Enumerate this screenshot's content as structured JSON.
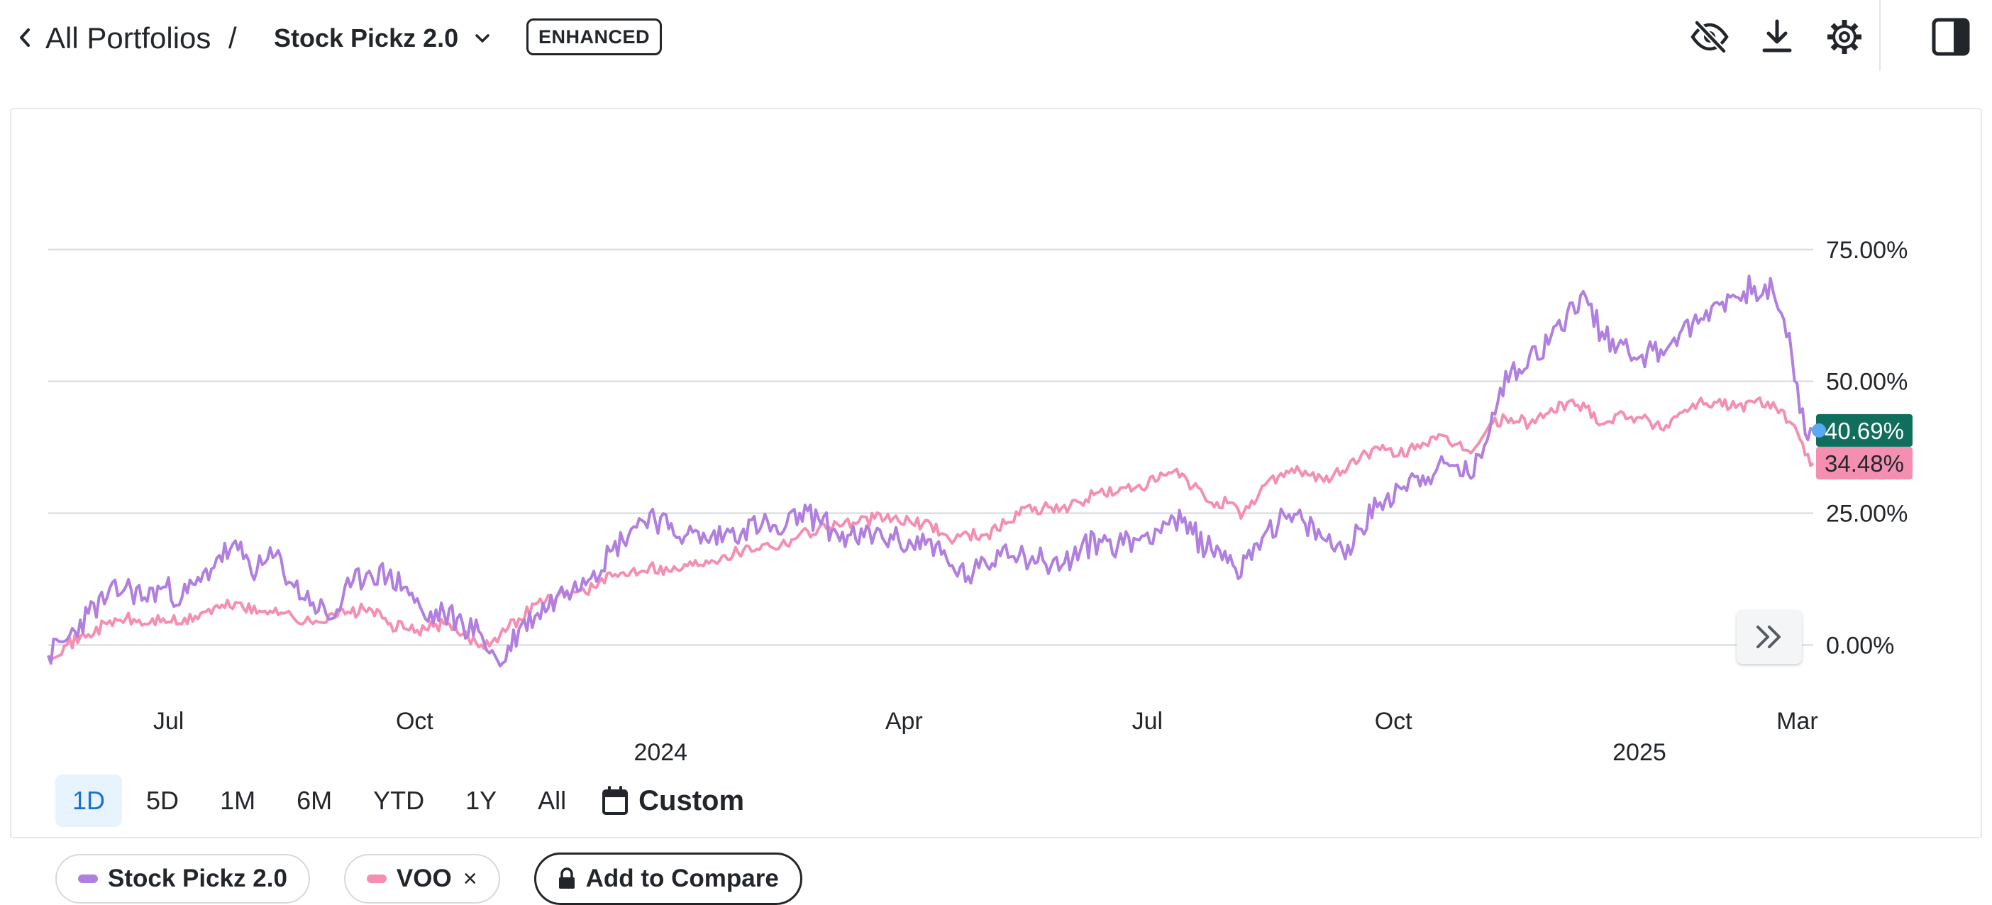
{
  "header": {
    "breadcrumb_root": "All Portfolios",
    "breadcrumb_separator": "/",
    "portfolio_name": "Stock Pickz 2.0",
    "badge": "ENHANCED",
    "icons": [
      "back-chevron-icon",
      "chevron-down-icon",
      "eye-off-icon",
      "download-icon",
      "gear-icon",
      "side-panel-icon"
    ]
  },
  "ranges": {
    "buttons": [
      "1D",
      "5D",
      "1M",
      "6M",
      "YTD",
      "1Y",
      "All"
    ],
    "active": "1D",
    "custom_label": "Custom"
  },
  "legend": {
    "portfolio": "Stock Pickz 2.0",
    "benchmark": "VOO",
    "close_symbol": "×",
    "compare_label": "Add to Compare"
  },
  "colors": {
    "portfolio": "#b07fdf",
    "benchmark": "#f58fb1",
    "portfolio_badge": "#0f6e5c",
    "benchmark_badge": "#f58fb1",
    "active_range_bg": "#e7f3fd",
    "active_range_text": "#1b6fd1"
  },
  "chart_data": {
    "type": "line",
    "y_unit": "%",
    "ylim": [
      -13,
      93
    ],
    "y_ticks": [
      "0.00%",
      "25.00%",
      "50.00%",
      "75.00%"
    ],
    "y_tick_values": [
      0,
      25,
      50,
      75
    ],
    "x_domain": [
      "2023-05-17",
      "2025-03-07"
    ],
    "x_ticks": [
      {
        "date": "2023-07-01",
        "label": "Jul"
      },
      {
        "date": "2023-10-01",
        "label": "Oct"
      },
      {
        "date": "2024-04-01",
        "label": "Apr"
      },
      {
        "date": "2024-07-01",
        "label": "Jul"
      },
      {
        "date": "2024-10-01",
        "label": "Oct"
      },
      {
        "date": "2025-03-01",
        "label": "Mar"
      }
    ],
    "x_year_ticks": [
      {
        "date": "2024-01-01",
        "label": "2024"
      },
      {
        "date": "2025-01-01",
        "label": "2025"
      }
    ],
    "grid": true,
    "current_values": {
      "portfolio": "40.69%",
      "benchmark": "34.48%"
    },
    "series": [
      {
        "name": "Stock Pickz 2.0",
        "key": "portfolio",
        "points": [
          [
            "2023-05-17",
            -2
          ],
          [
            "2023-05-24",
            1
          ],
          [
            "2023-06-01",
            6
          ],
          [
            "2023-06-08",
            9
          ],
          [
            "2023-06-15",
            11
          ],
          [
            "2023-06-22",
            9
          ],
          [
            "2023-06-29",
            11
          ],
          [
            "2023-07-06",
            9
          ],
          [
            "2023-07-13",
            12
          ],
          [
            "2023-07-20",
            17
          ],
          [
            "2023-07-27",
            18
          ],
          [
            "2023-08-03",
            14
          ],
          [
            "2023-08-10",
            17
          ],
          [
            "2023-08-17",
            11
          ],
          [
            "2023-08-24",
            8
          ],
          [
            "2023-08-31",
            5
          ],
          [
            "2023-09-07",
            11
          ],
          [
            "2023-09-14",
            14
          ],
          [
            "2023-09-21",
            13
          ],
          [
            "2023-09-28",
            11
          ],
          [
            "2023-10-05",
            5
          ],
          [
            "2023-10-12",
            6
          ],
          [
            "2023-10-19",
            4
          ],
          [
            "2023-10-26",
            2
          ],
          [
            "2023-11-02",
            -4
          ],
          [
            "2023-11-09",
            3
          ],
          [
            "2023-11-16",
            6
          ],
          [
            "2023-11-23",
            9
          ],
          [
            "2023-11-30",
            12
          ],
          [
            "2023-12-07",
            14
          ],
          [
            "2023-12-14",
            18
          ],
          [
            "2023-12-21",
            22
          ],
          [
            "2023-12-28",
            25
          ],
          [
            "2024-01-04",
            22
          ],
          [
            "2024-01-11",
            21
          ],
          [
            "2024-01-18",
            20
          ],
          [
            "2024-01-25",
            21
          ],
          [
            "2024-02-01",
            22
          ],
          [
            "2024-02-08",
            23
          ],
          [
            "2024-02-15",
            21
          ],
          [
            "2024-02-22",
            25
          ],
          [
            "2024-02-29",
            24
          ],
          [
            "2024-03-07",
            21
          ],
          [
            "2024-03-14",
            20
          ],
          [
            "2024-03-21",
            21
          ],
          [
            "2024-03-28",
            20
          ],
          [
            "2024-04-04",
            19
          ],
          [
            "2024-04-11",
            20
          ],
          [
            "2024-04-18",
            15
          ],
          [
            "2024-04-25",
            13
          ],
          [
            "2024-05-02",
            15
          ],
          [
            "2024-05-09",
            19
          ],
          [
            "2024-05-16",
            17
          ],
          [
            "2024-05-23",
            16
          ],
          [
            "2024-05-30",
            15
          ],
          [
            "2024-06-06",
            18
          ],
          [
            "2024-06-13",
            20
          ],
          [
            "2024-06-20",
            19
          ],
          [
            "2024-06-27",
            20
          ],
          [
            "2024-07-04",
            22
          ],
          [
            "2024-07-11",
            24
          ],
          [
            "2024-07-18",
            21
          ],
          [
            "2024-07-25",
            18
          ],
          [
            "2024-08-01",
            17
          ],
          [
            "2024-08-05",
            13
          ],
          [
            "2024-08-08",
            18
          ],
          [
            "2024-08-15",
            22
          ],
          [
            "2024-08-22",
            24
          ],
          [
            "2024-08-29",
            23
          ],
          [
            "2024-09-05",
            20
          ],
          [
            "2024-09-12",
            18
          ],
          [
            "2024-09-19",
            22
          ],
          [
            "2024-09-26",
            27
          ],
          [
            "2024-10-03",
            30
          ],
          [
            "2024-10-10",
            32
          ],
          [
            "2024-10-17",
            33
          ],
          [
            "2024-10-24",
            34
          ],
          [
            "2024-10-31",
            32
          ],
          [
            "2024-11-07",
            44
          ],
          [
            "2024-11-14",
            52
          ],
          [
            "2024-11-21",
            55
          ],
          [
            "2024-11-28",
            57
          ],
          [
            "2024-12-05",
            63
          ],
          [
            "2024-12-12",
            66
          ],
          [
            "2024-12-19",
            58
          ],
          [
            "2024-12-26",
            57
          ],
          [
            "2025-01-02",
            55
          ],
          [
            "2025-01-09",
            56
          ],
          [
            "2025-01-16",
            59
          ],
          [
            "2025-01-23",
            61
          ],
          [
            "2025-01-30",
            65
          ],
          [
            "2025-02-06",
            66
          ],
          [
            "2025-02-13",
            68
          ],
          [
            "2025-02-20",
            67
          ],
          [
            "2025-02-27",
            55
          ],
          [
            "2025-03-04",
            40
          ],
          [
            "2025-03-07",
            40.69
          ]
        ]
      },
      {
        "name": "VOO",
        "key": "benchmark",
        "points": [
          [
            "2023-05-17",
            -2
          ],
          [
            "2023-05-24",
            0
          ],
          [
            "2023-06-01",
            2
          ],
          [
            "2023-06-08",
            4
          ],
          [
            "2023-06-15",
            5
          ],
          [
            "2023-06-22",
            4
          ],
          [
            "2023-06-29",
            5
          ],
          [
            "2023-07-06",
            4
          ],
          [
            "2023-07-13",
            6
          ],
          [
            "2023-07-20",
            7
          ],
          [
            "2023-07-27",
            8
          ],
          [
            "2023-08-03",
            6
          ],
          [
            "2023-08-10",
            7
          ],
          [
            "2023-08-17",
            5
          ],
          [
            "2023-08-24",
            4
          ],
          [
            "2023-08-31",
            6
          ],
          [
            "2023-09-07",
            6
          ],
          [
            "2023-09-14",
            7
          ],
          [
            "2023-09-21",
            4
          ],
          [
            "2023-09-28",
            3
          ],
          [
            "2023-10-05",
            3
          ],
          [
            "2023-10-12",
            4
          ],
          [
            "2023-10-19",
            2
          ],
          [
            "2023-10-26",
            0
          ],
          [
            "2023-11-02",
            2
          ],
          [
            "2023-11-09",
            5
          ],
          [
            "2023-11-16",
            8
          ],
          [
            "2023-11-23",
            9
          ],
          [
            "2023-11-30",
            10
          ],
          [
            "2023-12-07",
            11
          ],
          [
            "2023-12-14",
            13
          ],
          [
            "2023-12-21",
            14
          ],
          [
            "2023-12-28",
            15
          ],
          [
            "2024-01-04",
            14
          ],
          [
            "2024-01-11",
            15
          ],
          [
            "2024-01-18",
            16
          ],
          [
            "2024-01-25",
            17
          ],
          [
            "2024-02-01",
            18
          ],
          [
            "2024-02-08",
            19
          ],
          [
            "2024-02-15",
            19
          ],
          [
            "2024-02-22",
            21
          ],
          [
            "2024-02-29",
            22
          ],
          [
            "2024-03-07",
            23
          ],
          [
            "2024-03-14",
            23
          ],
          [
            "2024-03-21",
            24
          ],
          [
            "2024-03-28",
            24
          ],
          [
            "2024-04-04",
            23
          ],
          [
            "2024-04-11",
            23
          ],
          [
            "2024-04-18",
            20
          ],
          [
            "2024-04-25",
            21
          ],
          [
            "2024-05-02",
            21
          ],
          [
            "2024-05-09",
            23
          ],
          [
            "2024-05-16",
            26
          ],
          [
            "2024-05-23",
            26
          ],
          [
            "2024-05-30",
            26
          ],
          [
            "2024-06-06",
            27
          ],
          [
            "2024-06-13",
            29
          ],
          [
            "2024-06-20",
            29
          ],
          [
            "2024-06-27",
            30
          ],
          [
            "2024-07-04",
            31
          ],
          [
            "2024-07-11",
            33
          ],
          [
            "2024-07-18",
            30
          ],
          [
            "2024-07-25",
            27
          ],
          [
            "2024-08-01",
            27
          ],
          [
            "2024-08-05",
            24
          ],
          [
            "2024-08-08",
            26
          ],
          [
            "2024-08-15",
            31
          ],
          [
            "2024-08-22",
            33
          ],
          [
            "2024-08-29",
            33
          ],
          [
            "2024-09-05",
            31
          ],
          [
            "2024-09-12",
            33
          ],
          [
            "2024-09-19",
            36
          ],
          [
            "2024-09-26",
            37
          ],
          [
            "2024-10-03",
            36
          ],
          [
            "2024-10-10",
            38
          ],
          [
            "2024-10-17",
            39
          ],
          [
            "2024-10-24",
            38
          ],
          [
            "2024-10-31",
            37
          ],
          [
            "2024-11-07",
            42
          ],
          [
            "2024-11-14",
            43
          ],
          [
            "2024-11-21",
            42
          ],
          [
            "2024-11-28",
            44
          ],
          [
            "2024-12-05",
            46
          ],
          [
            "2024-12-12",
            45
          ],
          [
            "2024-12-19",
            42
          ],
          [
            "2024-12-26",
            44
          ],
          [
            "2025-01-02",
            43
          ],
          [
            "2025-01-09",
            41
          ],
          [
            "2025-01-16",
            44
          ],
          [
            "2025-01-23",
            46
          ],
          [
            "2025-01-30",
            46
          ],
          [
            "2025-02-06",
            45
          ],
          [
            "2025-02-13",
            46
          ],
          [
            "2025-02-20",
            46
          ],
          [
            "2025-02-27",
            42
          ],
          [
            "2025-03-04",
            36
          ],
          [
            "2025-03-07",
            34.48
          ]
        ]
      }
    ]
  }
}
